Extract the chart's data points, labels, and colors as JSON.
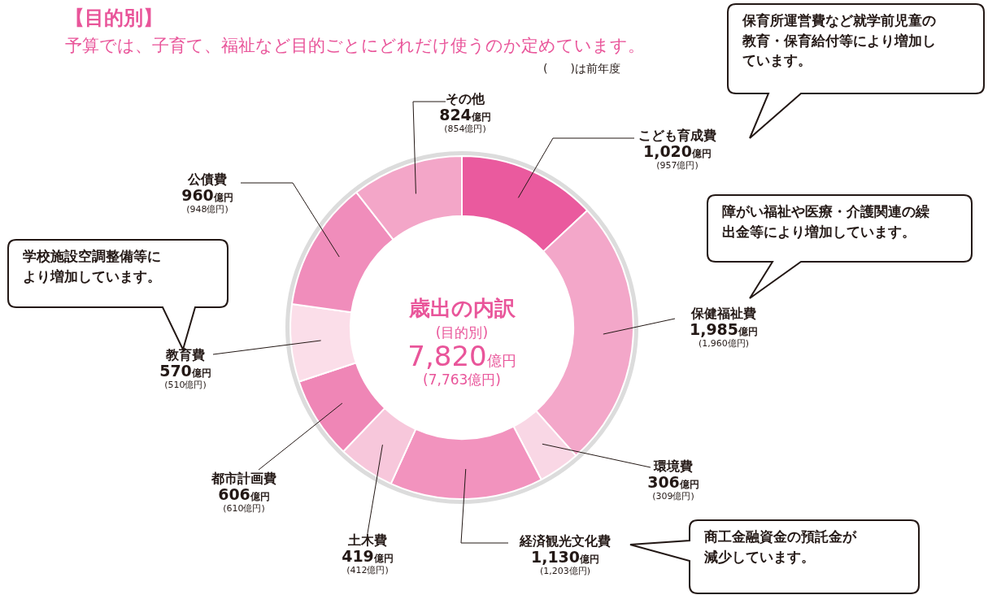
{
  "chart_data": {
    "type": "donut",
    "title": "【目的別】",
    "subtitle": "予算では、子育て、福祉など目的ごとにどれだけ使うのか定めています。",
    "categories": [
      "こども育成費",
      "保健福祉費",
      "環境費",
      "経済観光文化費",
      "土木費",
      "都市計画費",
      "教育費",
      "公債費",
      "その他"
    ],
    "values": [
      1020,
      1985,
      306,
      1130,
      419,
      606,
      570,
      960,
      824
    ],
    "value_labels": [
      "1,020億円",
      "1,985億円",
      "306億円",
      "1,130億円",
      "419億円",
      "606億円",
      "570億円",
      "960億円",
      "824億円"
    ],
    "colors": [
      "#ea5a9e",
      "#f3a7c9",
      "#f9d7e5",
      "#f293be",
      "#f7c7db",
      "#ef86b6",
      "#fbdee9",
      "#f08dbb",
      "#f3a6c8"
    ],
    "legend": false,
    "annotations": [
      "(　　)は前年度",
      "歳出の内訳",
      "(目的別)",
      "7,820億円",
      "(7,763億円)",
      {
        "text": "(957億円)",
        "x": "こども育成費"
      },
      {
        "text": "(1,960億円)",
        "x": "保健福祉費"
      },
      {
        "text": "(309億円)",
        "x": "環境費"
      },
      {
        "text": "(1,203億円)",
        "x": "経済観光文化費"
      },
      {
        "text": "(412億円)",
        "x": "土木費"
      },
      {
        "text": "(610億円)",
        "x": "都市計画費"
      },
      {
        "text": "(510億円)",
        "x": "教育費"
      },
      {
        "text": "(948億円)",
        "x": "公債費"
      },
      {
        "text": "(854億円)",
        "x": "その他"
      },
      {
        "text": "保育所運営費など就学前児童の教育・保育給付等により増加しています。",
        "x": "こども育成費"
      },
      {
        "text": "障がい福祉や医療・介護関連の繰出金等により増加しています。",
        "x": "保健福祉費"
      },
      {
        "text": "学校施設空調整備等により増加しています。",
        "x": "教育費"
      },
      {
        "text": "商工金融資金の預託金が減少しています。",
        "x": "経済観光文化費"
      }
    ]
  }
}
